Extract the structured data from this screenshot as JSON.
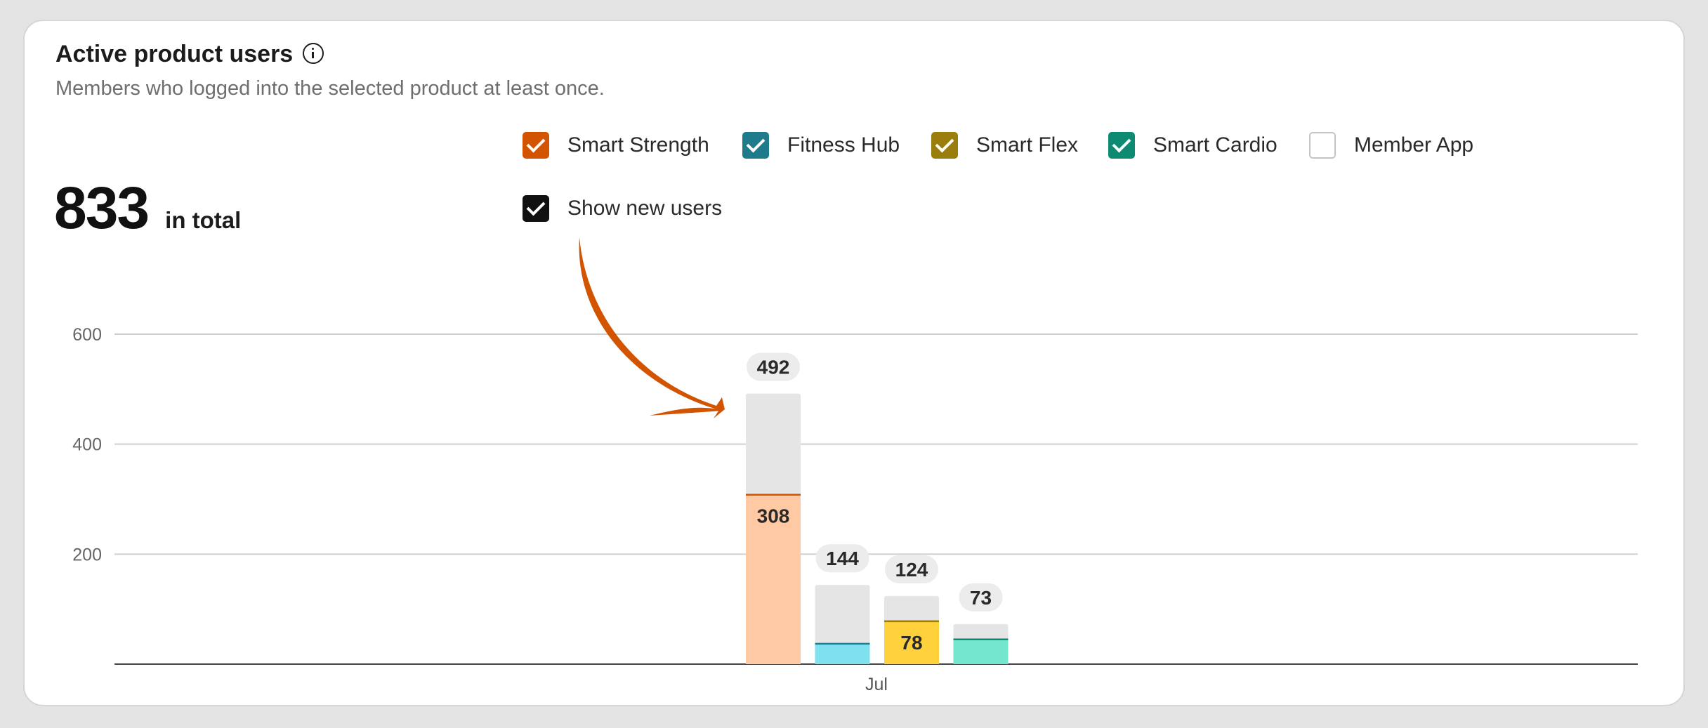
{
  "card": {
    "title": "Active product users",
    "subtitle": "Members who logged into the selected product at least once.",
    "total_value": "833",
    "total_label": "in total"
  },
  "legend": [
    {
      "label": "Smart Strength",
      "checked": true,
      "color": "#d35400",
      "icon": "smart-strength-checkbox"
    },
    {
      "label": "Fitness Hub",
      "checked": true,
      "color": "#1f7a8c",
      "icon": "fitness-hub-checkbox"
    },
    {
      "label": "Smart Flex",
      "checked": true,
      "color": "#9a7d0a",
      "icon": "smart-flex-checkbox"
    },
    {
      "label": "Smart Cardio",
      "checked": true,
      "color": "#0e8a73",
      "icon": "smart-cardio-checkbox"
    },
    {
      "label": "Member App",
      "checked": false,
      "color": "#c4c4c4",
      "icon": "member-app-checkbox"
    }
  ],
  "show_new_users": {
    "label": "Show new users",
    "checked": true,
    "color": "#111111"
  },
  "annotation": {
    "icon": "orange-curved-arrow-icon",
    "color": "#d35400"
  },
  "chart_data": {
    "type": "bar",
    "stacked": true,
    "categories": [
      "Jul"
    ],
    "ylim": [
      0,
      600
    ],
    "yticks": [
      200,
      400,
      600
    ],
    "grid": true,
    "bars": [
      {
        "product": "Smart Strength",
        "total": 492,
        "new": 308,
        "total_label": "492",
        "new_label": "308",
        "show_new_label": true,
        "color": "#ffc9a3",
        "line_color": "#d35400"
      },
      {
        "product": "Fitness Hub",
        "total": 144,
        "new": 37,
        "total_label": "144",
        "new_label": "",
        "show_new_label": false,
        "color": "#7fe0f0",
        "line_color": "#1f7a8c"
      },
      {
        "product": "Smart Flex",
        "total": 124,
        "new": 78,
        "total_label": "124",
        "new_label": "78",
        "show_new_label": true,
        "color": "#ffd23c",
        "line_color": "#9a7d0a"
      },
      {
        "product": "Smart Cardio",
        "total": 73,
        "new": 45,
        "total_label": "73",
        "new_label": "",
        "show_new_label": false,
        "color": "#74e6cd",
        "line_color": "#0e8a73"
      }
    ],
    "bar_background_color": "#e5e5e5"
  }
}
